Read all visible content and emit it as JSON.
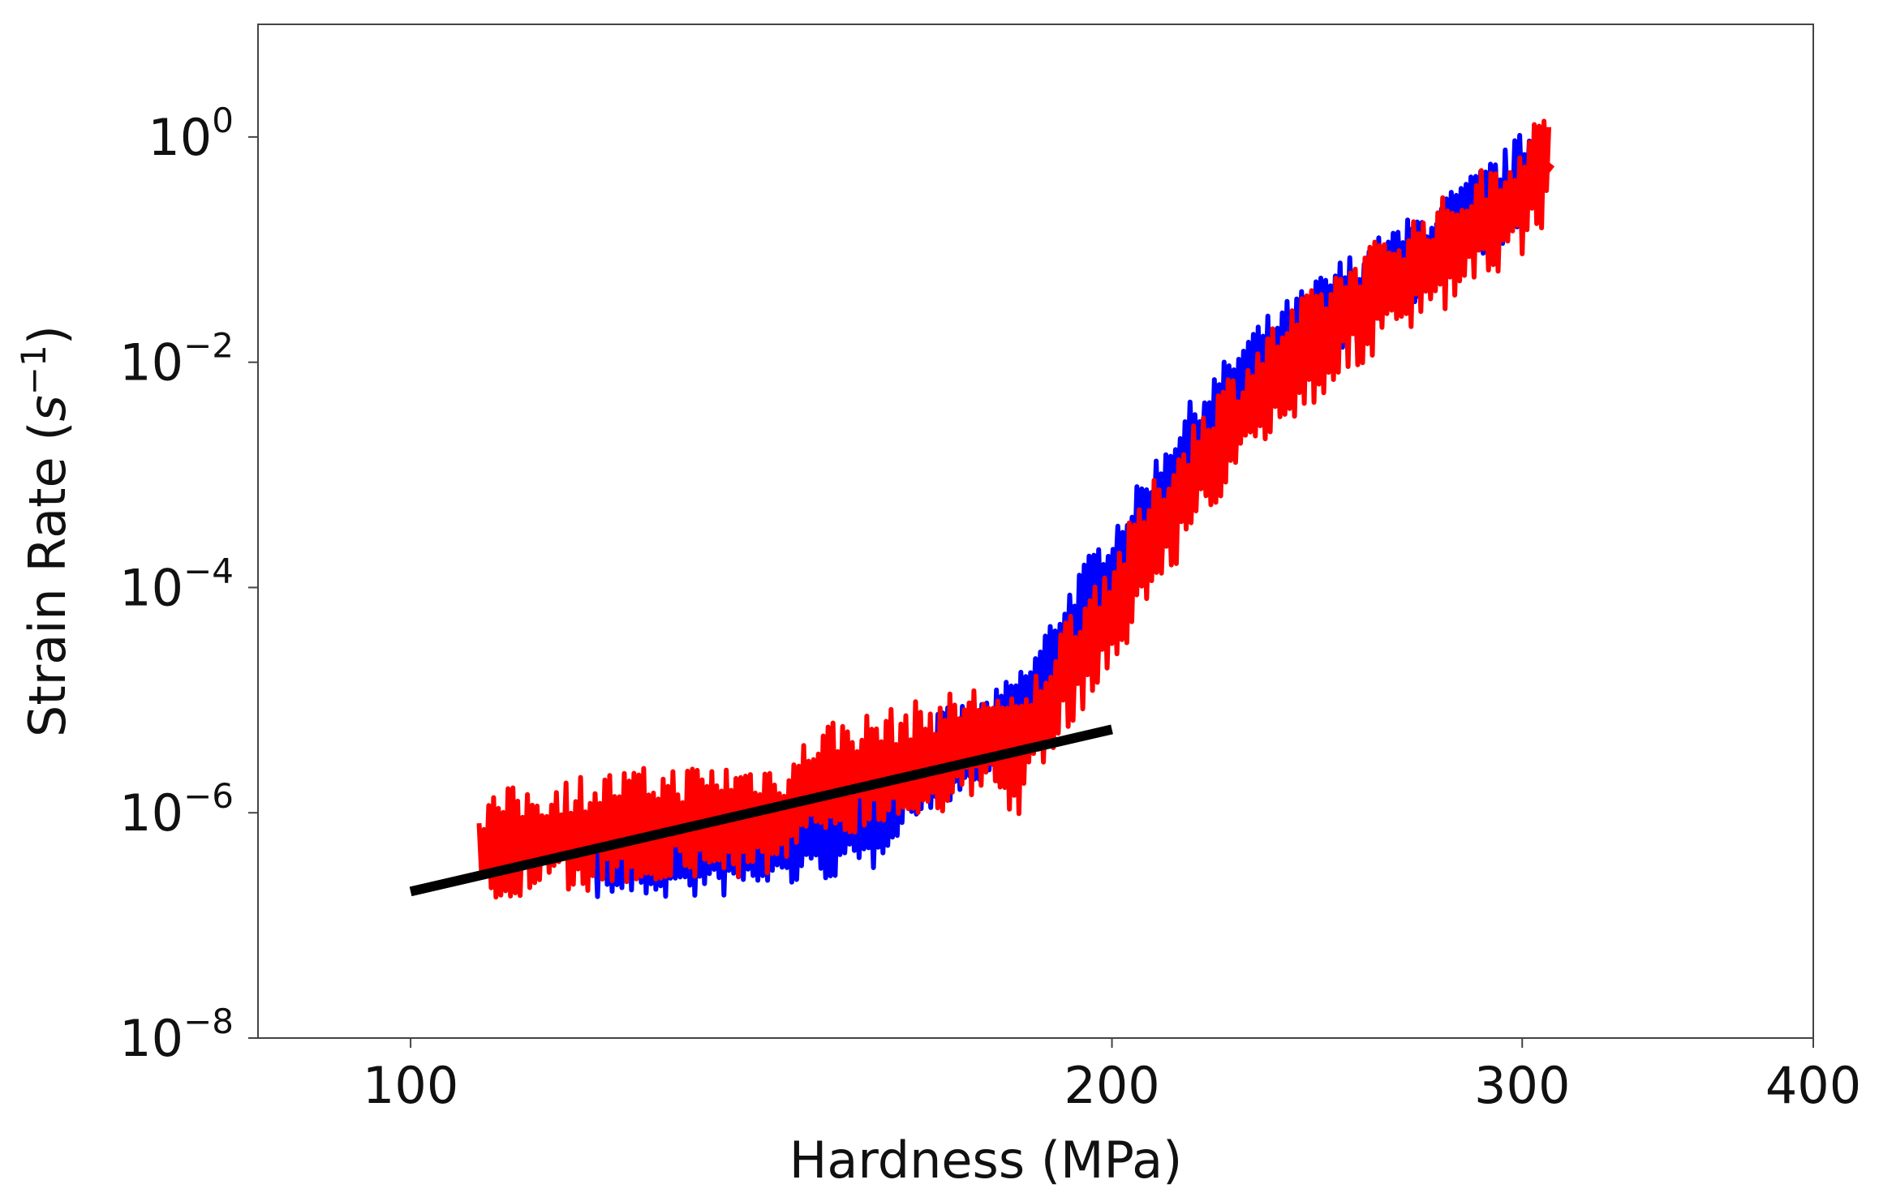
{
  "chart_data": {
    "type": "line",
    "title": "",
    "xlabel": "Hardness (MPa)",
    "ylabel": {
      "main": "Strain Rate (",
      "var": "s",
      "exp": "−1",
      "close": ")"
    },
    "x_scale": "log",
    "y_scale": "log",
    "xlim": [
      86,
      400
    ],
    "ylim": [
      1e-08,
      10
    ],
    "grid": false,
    "legend": "none",
    "x_ticks": [
      {
        "value": 100,
        "label": "100"
      },
      {
        "value": 200,
        "label": "200"
      },
      {
        "value": 300,
        "label": "300"
      },
      {
        "value": 400,
        "label": "400"
      }
    ],
    "y_ticks": [
      {
        "value": 1e-08,
        "base": "10",
        "exp": "−8"
      },
      {
        "value": 1e-06,
        "base": "10",
        "exp": "−6"
      },
      {
        "value": 0.0001,
        "base": "10",
        "exp": "−4"
      },
      {
        "value": 0.01,
        "base": "10",
        "exp": "−2"
      },
      {
        "value": 1,
        "base": "10",
        "exp": "0"
      }
    ],
    "series": [
      {
        "color": "#0000ff",
        "x": [
          120,
          135,
          150,
          158,
          161,
          168,
          178,
          185,
          190,
          196,
          205,
          215,
          230,
          250,
          275,
          295,
          305
        ],
        "y": [
          4.5e-07,
          4.5e-07,
          6.5e-07,
          8e-07,
          1.5e-06,
          3e-06,
          4.5e-06,
          1e-05,
          3e-05,
          8e-05,
          0.0003,
          0.0015,
          0.008,
          0.03,
          0.1,
          0.3,
          0.6
        ],
        "band": 0.28
      },
      {
        "color": "#ff0000",
        "x": [
          107,
          120,
          135,
          145,
          150,
          160,
          170,
          177,
          182,
          186,
          192,
          200,
          208,
          220,
          235,
          255,
          280,
          300,
          308
        ],
        "y": [
          4.5e-07,
          7e-07,
          8.5e-07,
          9e-07,
          2e-06,
          2.5e-06,
          3.5e-06,
          4.5e-06,
          3e-06,
          6e-06,
          2e-05,
          6e-05,
          0.00025,
          0.0015,
          0.007,
          0.03,
          0.1,
          0.3,
          0.6
        ],
        "band": 0.35
      },
      {
        "color": "#000000",
        "x": [
          100,
          200
        ],
        "y": [
          2e-07,
          5.5e-06
        ],
        "band": 0
      }
    ]
  }
}
